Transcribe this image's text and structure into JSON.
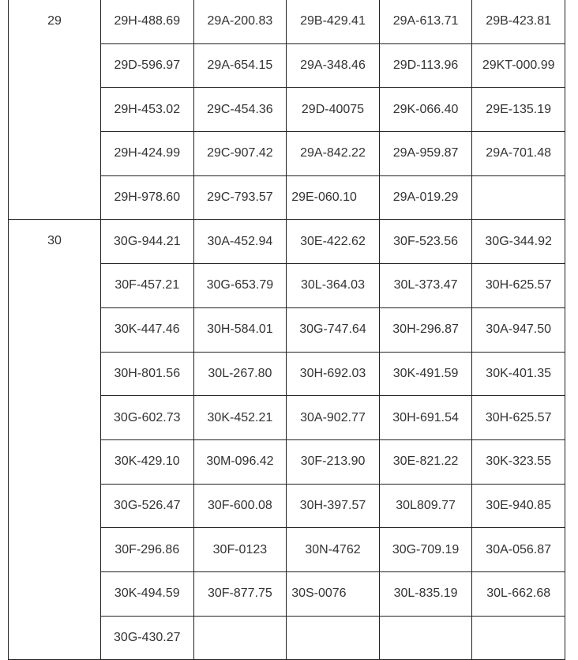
{
  "table": {
    "groups": [
      {
        "label": "29",
        "rows": [
          [
            "29H-488.69",
            "29A-200.83",
            "29B-429.41",
            "29A-613.71",
            "29B-423.81"
          ],
          [
            "29D-596.97",
            "29A-654.15",
            "29A-348.46",
            "29D-113.96",
            "29KT-000.99"
          ],
          [
            "29H-453.02",
            "29C-454.36",
            "29D-40075",
            "29K-066.40",
            "29E-135.19"
          ],
          [
            "29H-424.99",
            "29C-907.42",
            "29A-842.22",
            "29A-959.87",
            "29A-701.48"
          ],
          [
            "29H-978.60",
            "29C-793.57",
            "29E-060.10",
            "29A-019.29",
            ""
          ]
        ]
      },
      {
        "label": "30",
        "rows": [
          [
            "30G-944.21",
            "30A-452.94",
            "30E-422.62",
            "30F-523.56",
            "30G-344.92"
          ],
          [
            "30F-457.21",
            "30G-653.79",
            "30L-364.03",
            "30L-373.47",
            "30H-625.57"
          ],
          [
            "30K-447.46",
            "30H-584.01",
            "30G-747.64",
            "30H-296.87",
            "30A-947.50"
          ],
          [
            "30H-801.56",
            "30L-267.80",
            "30H-692.03",
            "30K-491.59",
            "30K-401.35"
          ],
          [
            "30G-602.73",
            "30K-452.21",
            "30A-902.77",
            "30H-691.54",
            "30H-625.57"
          ],
          [
            "30K-429.10",
            "30M-096.42",
            "30F-213.90",
            "30E-821.22",
            "30K-323.55"
          ],
          [
            "30G-526.47",
            "30F-600.08",
            "30H-397.57",
            "30L809.77",
            "30E-940.85"
          ],
          [
            "30F-296.86",
            "30F-0123",
            "30N-4762",
            "30G-709.19",
            "30A-056.87"
          ],
          [
            "30K-494.59",
            "30F-877.75",
            "30S-0076",
            "30L-835.19",
            "30L-662.68"
          ],
          [
            "30G-430.27",
            "",
            "",
            "",
            ""
          ]
        ]
      }
    ]
  }
}
